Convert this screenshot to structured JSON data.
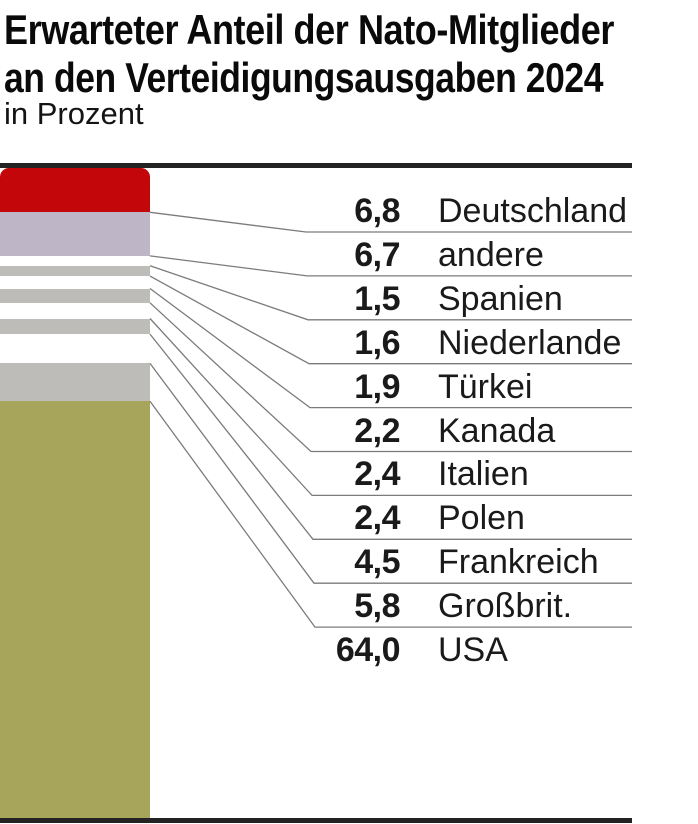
{
  "header": {
    "title_line1": "Erwarteter Anteil der Nato-Mitglieder",
    "title_line2": "an den Verteidigungsausgaben 2024",
    "subtitle": "in Prozent"
  },
  "chart_data": {
    "type": "bar",
    "variant": "stacked-single-column",
    "orientation": "vertical",
    "title": "Erwarteter Anteil der Nato-Mitglieder an den Verteidigungsausgaben 2024",
    "unit_label": "in Prozent",
    "legend_position": "right",
    "total_percent": 99.8,
    "categories": [
      "Deutschland",
      "andere",
      "Spanien",
      "Niederlande",
      "Türkei",
      "Kanada",
      "Italien",
      "Polen",
      "Frankreich",
      "Großbrit.",
      "USA"
    ],
    "values": [
      6.8,
      6.7,
      1.5,
      1.6,
      1.9,
      2.2,
      2.4,
      2.4,
      4.5,
      5.8,
      64.0
    ],
    "value_labels": [
      "6,8",
      "6,7",
      "1,5",
      "1,6",
      "1,9",
      "2,2",
      "2,4",
      "2,4",
      "4,5",
      "5,8",
      "64,0"
    ],
    "segment_colors": [
      "#c20609",
      "#beb5c6",
      "#ffffff",
      "#bdbcb9",
      "#ffffff",
      "#bdbcb9",
      "#ffffff",
      "#bdbcb9",
      "#ffffff",
      "#bdbcb9",
      "#a7a45c"
    ],
    "colors": {
      "frame_rule": "#232323",
      "leader_line": "#7b7b7b",
      "text": "#1a1a1a",
      "background": "#ffffff"
    }
  }
}
